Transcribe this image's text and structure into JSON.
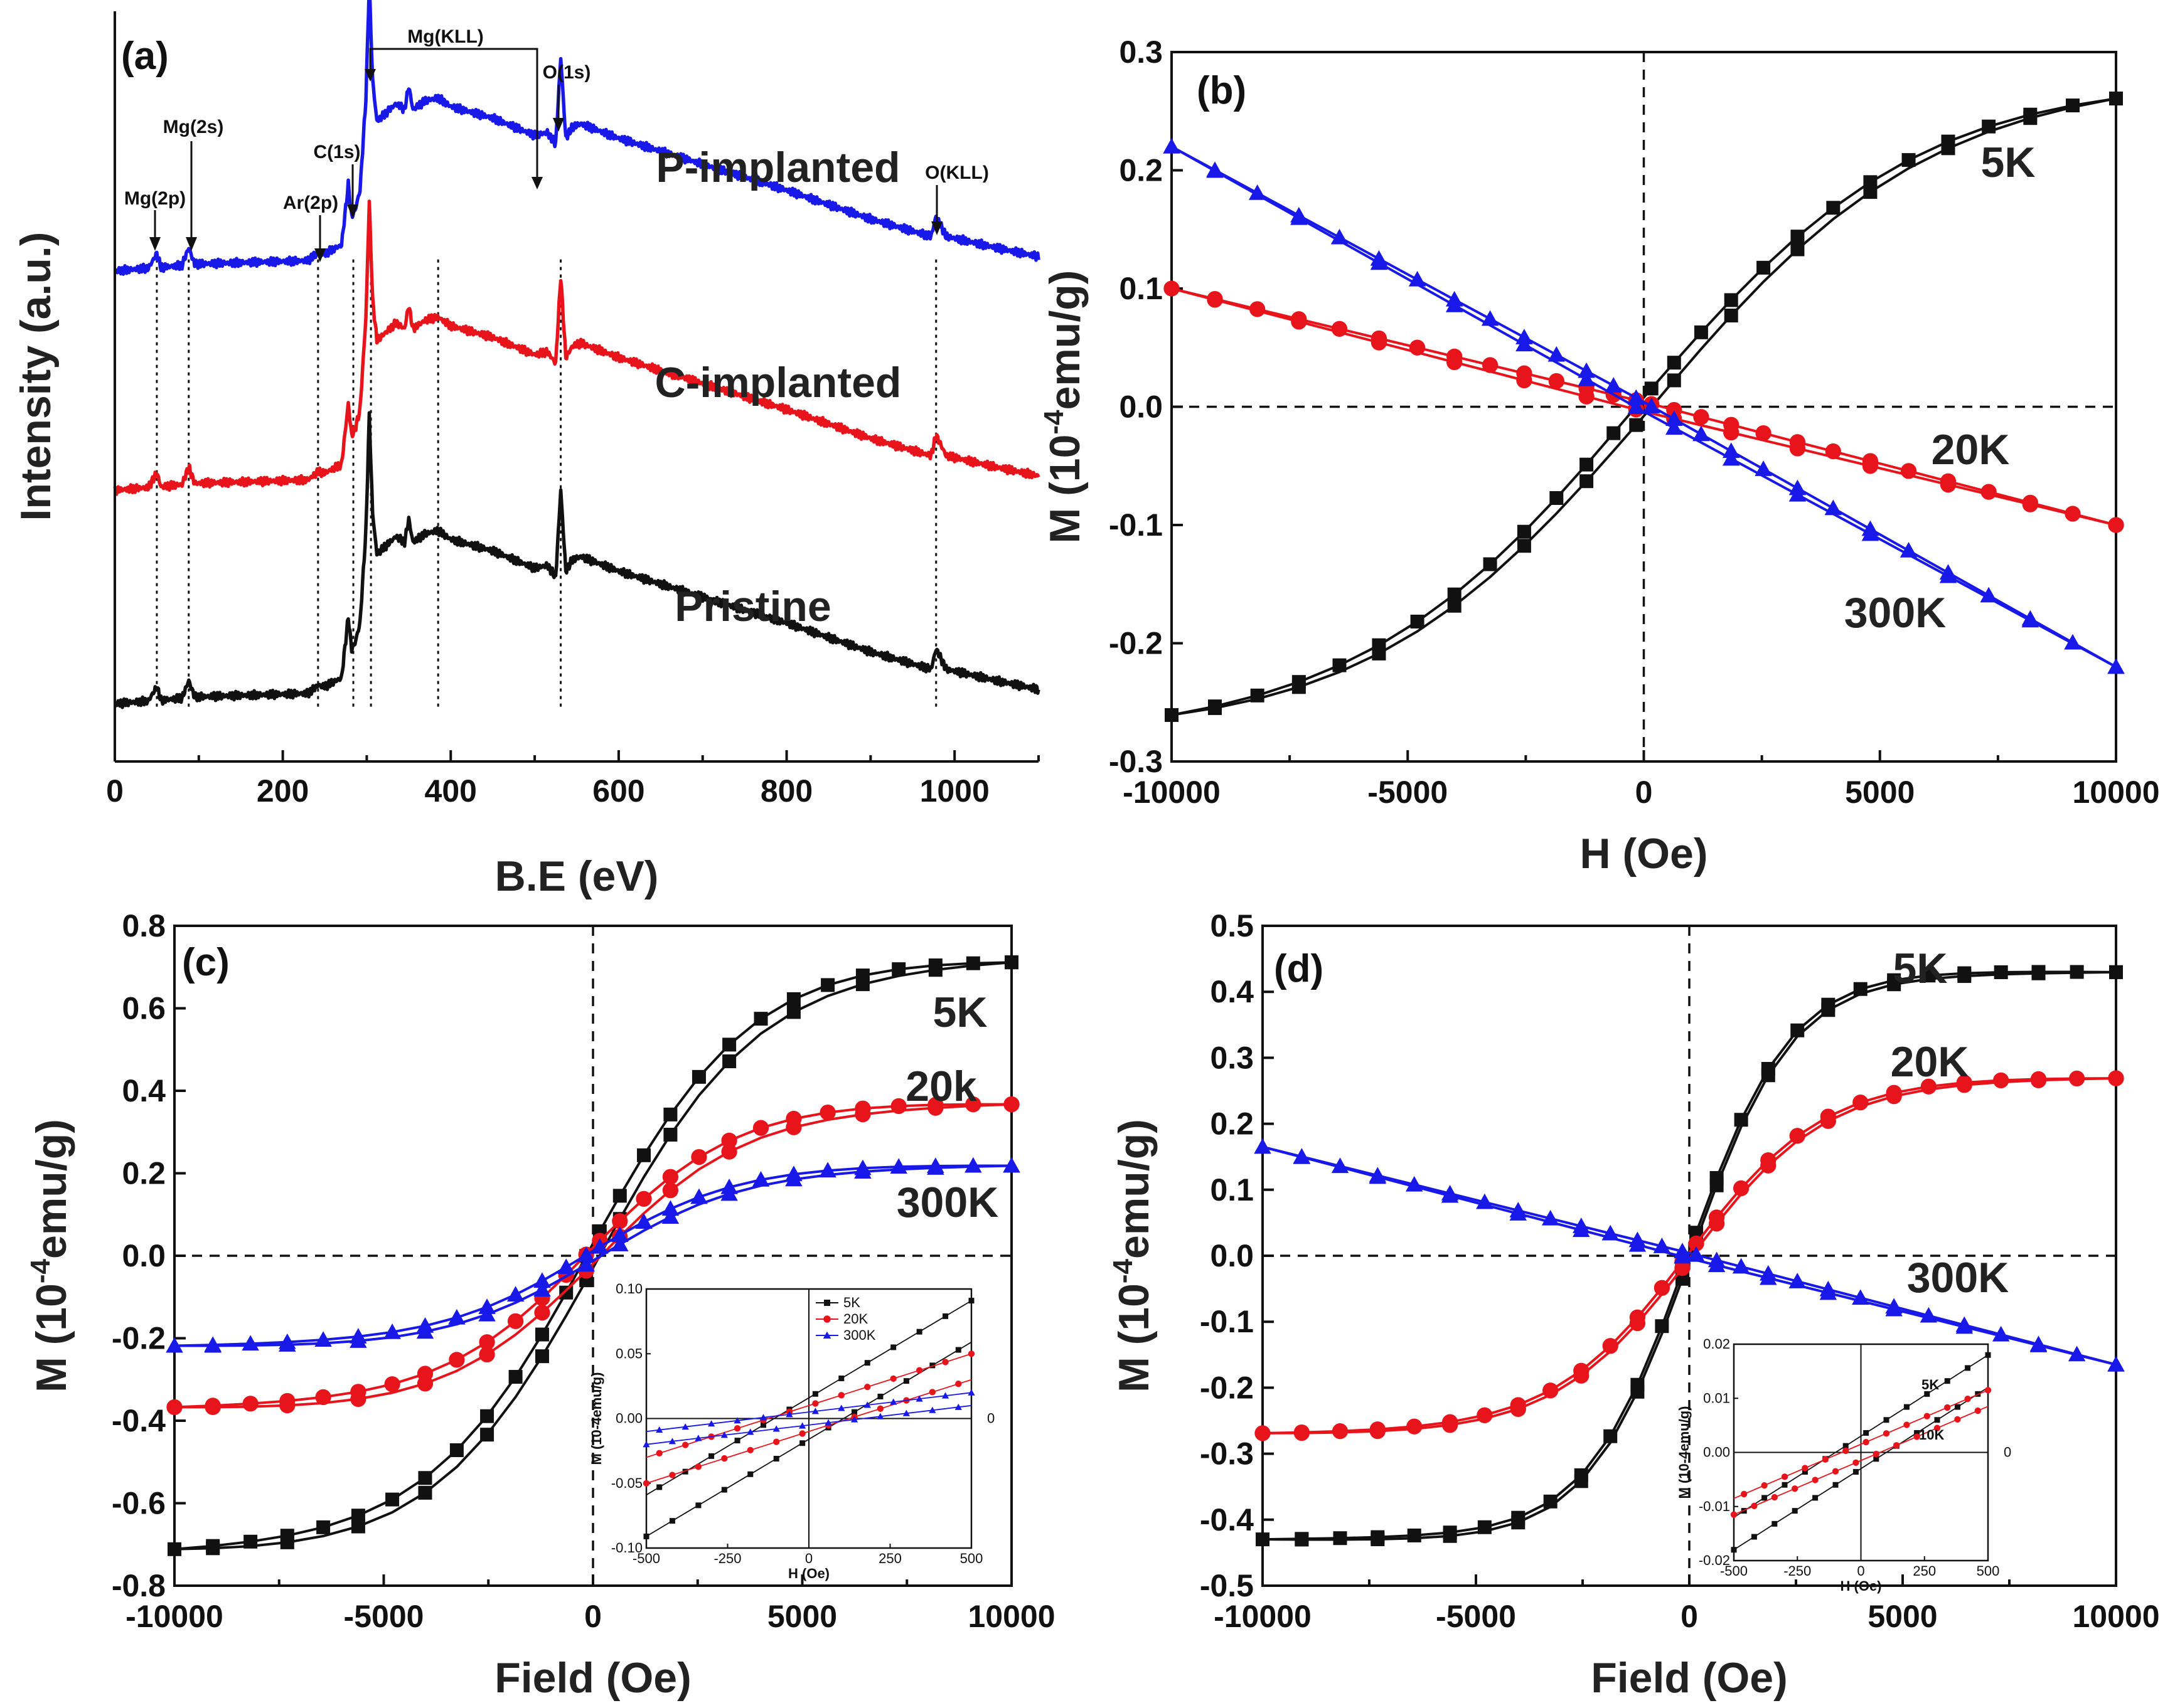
{
  "colors": {
    "black": "#111111",
    "red": "#e8141b",
    "blue": "#1818e8",
    "axis": "#222222"
  },
  "chart_data": [
    {
      "type": "line",
      "panel": "(a)",
      "xlabel": "B.E (eV)",
      "ylabel": "Intensity (a.u.)",
      "xlim": [
        0,
        1100
      ],
      "ylim": [
        0,
        13
      ],
      "xticks": [
        "0",
        "200",
        "400",
        "600",
        "800",
        "1000"
      ],
      "peak_labels": [
        {
          "label": "Mg(2p)",
          "x": 50
        },
        {
          "label": "Mg(2s)",
          "x": 88
        },
        {
          "label": "Ar(2p)",
          "x": 242
        },
        {
          "label": "C(1s)",
          "x": 284
        },
        {
          "label": "Mg(KLL)",
          "x": 305
        },
        {
          "label": "O(1s)",
          "x": 531
        },
        {
          "label": "O(KLL)",
          "x": 978
        }
      ],
      "guide_lines_x": [
        50,
        88,
        242,
        284,
        305,
        385,
        531,
        978
      ],
      "series": [
        {
          "name": "P-implanted",
          "color": "#1818e8",
          "offset": 8.5
        },
        {
          "name": "C-implanted",
          "color": "#e8141b",
          "offset": 4.7
        },
        {
          "name": "Pristine",
          "color": "#111111",
          "offset": 1.0
        }
      ],
      "profile": {
        "x": [
          0,
          40,
          50,
          55,
          80,
          88,
          95,
          230,
          242,
          250,
          270,
          278,
          282,
          286,
          292,
          299,
          303,
          307,
          312,
          320,
          335,
          345,
          350,
          355,
          370,
          385,
          400,
          450,
          500,
          515,
          525,
          531,
          537,
          545,
          555,
          600,
          700,
          800,
          900,
          960,
          972,
          978,
          990,
          1050,
          1100
        ],
        "y": [
          0.0,
          0.05,
          0.3,
          0.06,
          0.1,
          0.4,
          0.12,
          0.18,
          0.32,
          0.3,
          0.45,
          1.5,
          0.95,
          1.05,
          1.4,
          3.0,
          5.0,
          3.3,
          2.6,
          2.7,
          2.9,
          2.8,
          3.2,
          2.8,
          2.95,
          3.0,
          2.85,
          2.65,
          2.35,
          2.4,
          2.2,
          3.7,
          2.3,
          2.5,
          2.55,
          2.3,
          1.85,
          1.4,
          0.9,
          0.65,
          0.6,
          0.95,
          0.6,
          0.4,
          0.25
        ]
      }
    },
    {
      "type": "scatter-line",
      "panel": "(b)",
      "xlabel": "H (Oe)",
      "ylabel_main": "M (10",
      "ylabel_sup": "-4",
      "ylabel_unit": "emu/g)",
      "xlim": [
        -10000,
        10000
      ],
      "ylim": [
        -0.3,
        0.3
      ],
      "xticks": [
        "-10000",
        "-5000",
        "0",
        "5000",
        "10000"
      ],
      "yticks": [
        "0.3",
        "0.2",
        "0.1",
        "0.0",
        "-0.1",
        "-0.2",
        "-0.3"
      ],
      "series": [
        {
          "name": "5K",
          "color": "#111111",
          "marker": "square",
          "kind": "tanh",
          "ms": 0.28,
          "h0": 6000,
          "dy": 0.008
        },
        {
          "name": "20K",
          "color": "#e8141b",
          "marker": "circle",
          "kind": "linear",
          "slope": -1e-05,
          "dy": 0.004
        },
        {
          "name": "300K",
          "color": "#1818e8",
          "marker": "triangle",
          "kind": "linear",
          "slope": -2.2e-05,
          "dy": 0.004
        }
      ]
    },
    {
      "type": "scatter-line",
      "panel": "(c)",
      "xlabel": "Field (Oe)",
      "ylabel_main": "M (10",
      "ylabel_sup": "-4",
      "ylabel_unit": "emu/g)",
      "xlim": [
        -10000,
        10000
      ],
      "ylim": [
        -0.8,
        0.8
      ],
      "xticks": [
        "-10000",
        "-5000",
        "0",
        "5000",
        "10000"
      ],
      "yticks": [
        "0.8",
        "0.6",
        "0.4",
        "0.2",
        "0.0",
        "-0.2",
        "-0.4",
        "-0.6",
        "-0.8"
      ],
      "series": [
        {
          "name": "5K",
          "color": "#111111",
          "marker": "square",
          "kind": "tanh",
          "ms": 0.72,
          "h0": 3900,
          "dy": 0.03
        },
        {
          "name": "20k",
          "color": "#e8141b",
          "marker": "circle",
          "kind": "tanh",
          "ms": 0.37,
          "h0": 3600,
          "dy": 0.02
        },
        {
          "name": "300K",
          "color": "#1818e8",
          "marker": "triangle",
          "kind": "tanh",
          "ms": 0.22,
          "h0": 3600,
          "dy": 0.012
        }
      ],
      "inset": {
        "xlabel": "H (Oe)",
        "ylabel": "M (10-4emu/g)",
        "xlim": [
          -500,
          500
        ],
        "ylim": [
          -0.1,
          0.1
        ],
        "xticks": [
          "-500",
          "-250",
          "0",
          "250",
          "500"
        ],
        "yticks": [
          "0.10",
          "0.05",
          "0.00",
          "-0.05",
          "-0.10"
        ],
        "legend": [
          "5K",
          "20K",
          "300K"
        ],
        "stray_tick": "0",
        "series": [
          {
            "name": "5K",
            "color": "#111111",
            "marker": "square",
            "slope": 0.00015,
            "dy": 0.016
          },
          {
            "name": "20K",
            "color": "#e8141b",
            "marker": "circle",
            "slope": 8e-05,
            "dy": 0.01
          },
          {
            "name": "300K",
            "color": "#1818e8",
            "marker": "triangle",
            "slope": 3e-05,
            "dy": 0.005
          }
        ]
      }
    },
    {
      "type": "scatter-line",
      "panel": "(d)",
      "xlabel": "Field (Oe)",
      "ylabel_main": "M (10",
      "ylabel_sup": "-4",
      "ylabel_unit": "emu/g)",
      "xlim": [
        -10000,
        10000
      ],
      "ylim": [
        -0.5,
        0.5
      ],
      "xticks": [
        "-10000",
        "-5000",
        "0",
        "5000",
        "10000"
      ],
      "yticks": [
        "0.5",
        "0.4",
        "0.3",
        "0.2",
        "0.1",
        "0.0",
        "-0.1",
        "-0.2",
        "-0.3",
        "-0.4",
        "-0.5"
      ],
      "series": [
        {
          "name": "5K",
          "color": "#111111",
          "marker": "square",
          "kind": "tanh",
          "ms": 0.43,
          "h0": 2400,
          "dy": 0.006
        },
        {
          "name": "20K",
          "color": "#e8141b",
          "marker": "circle",
          "kind": "tanh",
          "ms": 0.27,
          "h0": 3200,
          "dy": 0.005
        },
        {
          "name": "300K",
          "color": "#1818e8",
          "marker": "triangle",
          "kind": "linear",
          "slope": -1.65e-05,
          "dy": 0.004
        }
      ],
      "inset": {
        "xlabel": "H (Oe)",
        "ylabel": "M (10-4emu/g)",
        "xlim": [
          -500,
          500
        ],
        "ylim": [
          -0.02,
          0.02
        ],
        "xticks": [
          "-500",
          "-250",
          "0",
          "250",
          "500"
        ],
        "yticks": [
          "0.02",
          "0.01",
          "0.00",
          "-0.01",
          "-0.02"
        ],
        "stray_tick": "0",
        "series": [
          {
            "name": "5K",
            "color": "#111111",
            "marker": "square",
            "slope": 3e-05,
            "dy": 0.003
          },
          {
            "name": "10K",
            "color": "#e8141b",
            "marker": "circle",
            "slope": 2e-05,
            "dy": 0.0015
          }
        ]
      }
    }
  ]
}
